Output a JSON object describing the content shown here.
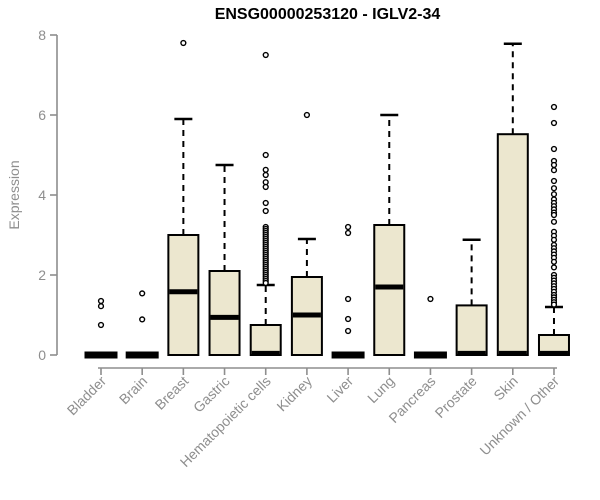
{
  "chart_data": {
    "type": "boxplot",
    "title": "ENSG00000253120 - IGLV2-34",
    "ylabel": "Expression",
    "xlabel": "",
    "ylim": [
      0,
      8
    ],
    "yticks": [
      0,
      2,
      4,
      6,
      8
    ],
    "grid": false,
    "legend": "none",
    "box_fill": "#ece7cf",
    "box_stroke": "#000000",
    "axis_color": "#8e8e8e",
    "label_color": "#8e8e8e",
    "categories": [
      "Bladder",
      "Brain",
      "Breast",
      "Gastric",
      "Hematopoietic cells",
      "Kidney",
      "Liver",
      "Lung",
      "Pancreas",
      "Prostate",
      "Skin",
      "Unknown / Other"
    ],
    "boxes": [
      {
        "category": "Bladder",
        "flat": true,
        "q1": 0,
        "median": 0,
        "q3": 0,
        "whisker_low": 0,
        "whisker_high": 0,
        "outliers": [
          1.35,
          1.22,
          0.75
        ]
      },
      {
        "category": "Brain",
        "flat": true,
        "q1": 0,
        "median": 0,
        "q3": 0,
        "whisker_low": 0,
        "whisker_high": 0,
        "outliers": [
          1.54,
          0.89
        ]
      },
      {
        "category": "Breast",
        "flat": false,
        "q1": 0,
        "median": 1.58,
        "q3": 3.0,
        "whisker_low": 0,
        "whisker_high": 5.9,
        "outliers": [
          7.8
        ]
      },
      {
        "category": "Gastric",
        "flat": false,
        "q1": 0,
        "median": 0.94,
        "q3": 2.1,
        "whisker_low": 0,
        "whisker_high": 4.75,
        "outliers": []
      },
      {
        "category": "Hematopoietic cells",
        "flat": false,
        "q1": 0,
        "median": 0.04,
        "q3": 0.75,
        "whisker_low": 0,
        "whisker_high": 1.75,
        "outliers": [
          7.5,
          5.0,
          4.63,
          4.5,
          4.32,
          4.2,
          3.8,
          3.6,
          3.2,
          3.15,
          3.1,
          3.05,
          3.0,
          2.95,
          2.9,
          2.85,
          2.8,
          2.75,
          2.7,
          2.65,
          2.6,
          2.55,
          2.5,
          2.45,
          2.4,
          2.35,
          2.3,
          2.25,
          2.2,
          2.15,
          2.1,
          2.05,
          2.0,
          1.95,
          1.9,
          1.85,
          1.8
        ]
      },
      {
        "category": "Kidney",
        "flat": false,
        "q1": 0,
        "median": 1.0,
        "q3": 1.95,
        "whisker_low": 0,
        "whisker_high": 2.9,
        "outliers": [
          6.0
        ]
      },
      {
        "category": "Liver",
        "flat": true,
        "q1": 0,
        "median": 0,
        "q3": 0,
        "whisker_low": 0,
        "whisker_high": 0,
        "outliers": [
          3.2,
          3.05,
          1.4,
          0.9,
          0.6
        ]
      },
      {
        "category": "Lung",
        "flat": false,
        "q1": 0,
        "median": 1.7,
        "q3": 3.25,
        "whisker_low": 0,
        "whisker_high": 6.0,
        "outliers": []
      },
      {
        "category": "Pancreas",
        "flat": true,
        "q1": 0,
        "median": 0,
        "q3": 0,
        "whisker_low": 0,
        "whisker_high": 0,
        "outliers": [
          1.4
        ]
      },
      {
        "category": "Prostate",
        "flat": false,
        "q1": 0,
        "median": 0.04,
        "q3": 1.24,
        "whisker_low": 0,
        "whisker_high": 2.88,
        "outliers": []
      },
      {
        "category": "Skin",
        "flat": false,
        "q1": 0,
        "median": 0.04,
        "q3": 5.52,
        "whisker_low": 0,
        "whisker_high": 7.78,
        "outliers": []
      },
      {
        "category": "Unknown / Other",
        "flat": false,
        "q1": 0,
        "median": 0.04,
        "q3": 0.5,
        "whisker_low": 0,
        "whisker_high": 1.2,
        "outliers": [
          6.2,
          5.8,
          5.15,
          4.85,
          4.75,
          4.62,
          4.35,
          4.17,
          4.02,
          3.89,
          3.8,
          3.72,
          3.64,
          3.56,
          3.5,
          3.33,
          3.08,
          2.98,
          2.88,
          2.75,
          2.67,
          2.59,
          2.51,
          2.43,
          2.33,
          2.19,
          2.0,
          1.93,
          1.86,
          1.79,
          1.72,
          1.65,
          1.58,
          1.5,
          1.44,
          1.38,
          1.32,
          1.26
        ]
      }
    ]
  }
}
